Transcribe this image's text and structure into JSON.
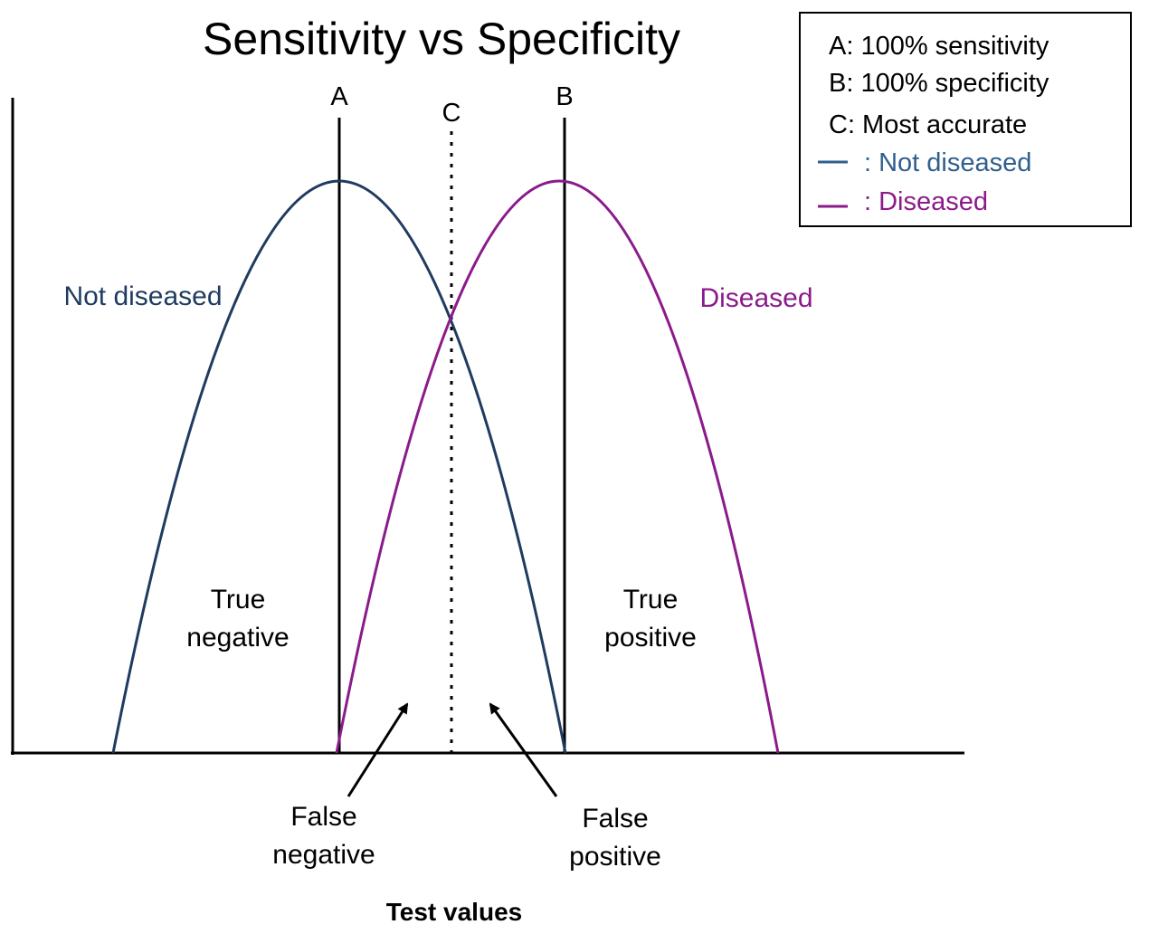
{
  "title": "Sensitivity vs Specificity",
  "legend": {
    "line_a": "A: 100% sensitivity",
    "line_b": "B: 100% specificity",
    "line_c": "C: Most accurate",
    "not_diseased": ": Not diseased",
    "diseased": ": Diseased"
  },
  "markers": {
    "a": "A",
    "b": "B",
    "c": "C"
  },
  "curve_labels": {
    "not_diseased": "Not diseased",
    "diseased": "Diseased"
  },
  "regions": {
    "true_negative": [
      "True",
      "negative"
    ],
    "true_positive": [
      "True",
      "positive"
    ],
    "false_negative": [
      "False",
      "negative"
    ],
    "false_positive": [
      "False",
      "positive"
    ]
  },
  "xlabel": "Test values",
  "colors": {
    "not_diseased": "#1f3b5f",
    "diseased": "#8b1a8b",
    "legend_not_diseased": "#2f5f8f",
    "axis": "#000000"
  },
  "icons": {
    "legend_not_diseased_swatch": "blue-line-swatch",
    "legend_diseased_swatch": "purple-line-swatch",
    "arrow_false_negative": "arrow-icon",
    "arrow_false_positive": "arrow-icon"
  }
}
